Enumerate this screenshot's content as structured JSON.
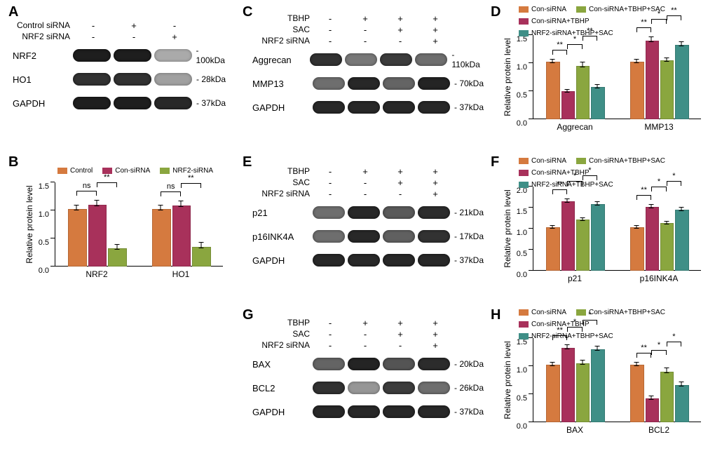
{
  "colors": {
    "orange": "#d57a3f",
    "magenta": "#a8315b",
    "olive": "#8aa63f",
    "teal": "#3f8f87",
    "grid": "#000000",
    "bg": "#ffffff"
  },
  "labels": {
    "A": "A",
    "B": "B",
    "C": "C",
    "D": "D",
    "E": "E",
    "F": "F",
    "G": "G",
    "H": "H"
  },
  "panelA": {
    "headers": [
      "Control siRNA",
      "NRF2 siRNA"
    ],
    "matrix": [
      [
        "-",
        "+",
        "-"
      ],
      [
        "-",
        "-",
        "+"
      ]
    ],
    "rows": [
      {
        "name": "NRF2",
        "mw": "100kDa",
        "intens": [
          0.95,
          0.95,
          0.25
        ]
      },
      {
        "name": "HO1",
        "mw": "28kDa",
        "intens": [
          0.85,
          0.85,
          0.3
        ]
      },
      {
        "name": "GAPDH",
        "mw": "37kDa",
        "intens": [
          0.95,
          0.95,
          0.9
        ]
      }
    ]
  },
  "panelB": {
    "ylabel": "Relative protein level",
    "ymax": 1.5,
    "ytick": 0.5,
    "series_colors": [
      "orange",
      "magenta",
      "olive"
    ],
    "legend": [
      "Control",
      "Con-siRNA",
      "NRF2-siRNA"
    ],
    "groups": [
      {
        "name": "NRF2",
        "vals": [
          1.0,
          1.07,
          0.3
        ],
        "errs": [
          0.1,
          0.12,
          0.1
        ],
        "sig": [
          [
            "ns",
            0,
            1
          ],
          [
            "**",
            1,
            2
          ]
        ]
      },
      {
        "name": "HO1",
        "vals": [
          1.0,
          1.06,
          0.33
        ],
        "errs": [
          0.1,
          0.11,
          0.11
        ],
        "sig": [
          [
            "ns",
            0,
            1
          ],
          [
            "**",
            1,
            2
          ]
        ]
      }
    ]
  },
  "panelC": {
    "headers": [
      "TBHP",
      "SAC",
      "NRF2 siRNA"
    ],
    "matrix": [
      [
        "-",
        "+",
        "+",
        "+"
      ],
      [
        "-",
        "-",
        "+",
        "+"
      ],
      [
        "-",
        "-",
        "-",
        "+"
      ]
    ],
    "rows": [
      {
        "name": "Aggrecan",
        "mw": "110kDa",
        "intens": [
          0.85,
          0.5,
          0.8,
          0.55
        ]
      },
      {
        "name": "MMP13",
        "mw": "70kDa",
        "intens": [
          0.55,
          0.9,
          0.6,
          0.92
        ]
      },
      {
        "name": "GAPDH",
        "mw": "37kDa",
        "intens": [
          0.9,
          0.9,
          0.9,
          0.9
        ]
      }
    ]
  },
  "panelE": {
    "headers": [
      "TBHP",
      "SAC",
      "NRF2 siRNA"
    ],
    "matrix": [
      [
        "-",
        "+",
        "+",
        "+"
      ],
      [
        "-",
        "-",
        "+",
        "+"
      ],
      [
        "-",
        "-",
        "-",
        "+"
      ]
    ],
    "rows": [
      {
        "name": "p21",
        "mw": "21kDa",
        "intens": [
          0.55,
          0.9,
          0.65,
          0.88
        ]
      },
      {
        "name": "p16INK4A",
        "mw": "17kDa",
        "intens": [
          0.55,
          0.9,
          0.62,
          0.85
        ]
      },
      {
        "name": "GAPDH",
        "mw": "37kDa",
        "intens": [
          0.9,
          0.9,
          0.9,
          0.9
        ]
      }
    ]
  },
  "panelG": {
    "headers": [
      "TBHP",
      "SAC",
      "NRF2 siRNA"
    ],
    "matrix": [
      [
        "-",
        "+",
        "+",
        "+"
      ],
      [
        "-",
        "-",
        "+",
        "+"
      ],
      [
        "-",
        "-",
        "-",
        "+"
      ]
    ],
    "rows": [
      {
        "name": "BAX",
        "mw": "20kDa",
        "intens": [
          0.6,
          0.92,
          0.68,
          0.88
        ]
      },
      {
        "name": "BCL2",
        "mw": "26kDa",
        "intens": [
          0.85,
          0.35,
          0.8,
          0.55
        ]
      },
      {
        "name": "GAPDH",
        "mw": "37kDa",
        "intens": [
          0.9,
          0.9,
          0.9,
          0.9
        ]
      }
    ]
  },
  "quadLegend": [
    "Con-siRNA",
    "Con-siRNA+TBHP+SAC",
    "Con-siRNA+TBHP",
    "NRF2-siRNA+TBHP+SAC"
  ],
  "quadColors": [
    "orange",
    "olive",
    "magenta",
    "teal"
  ],
  "panelD": {
    "ylabel": "Relative protein level",
    "ymax": 1.5,
    "ytick": 0.5,
    "groups": [
      {
        "name": "Aggrecan",
        "vals": [
          1.0,
          0.47,
          0.92,
          0.55
        ],
        "errs": [
          0.08,
          0.07,
          0.1,
          0.08
        ],
        "sig": [
          [
            "**",
            0,
            1
          ],
          [
            "*",
            1,
            2
          ],
          [
            "**",
            2,
            3
          ]
        ]
      },
      {
        "name": "MMP13",
        "vals": [
          1.0,
          1.38,
          1.02,
          1.3
        ],
        "errs": [
          0.08,
          0.1,
          0.08,
          0.09
        ],
        "sig": [
          [
            "**",
            0,
            1
          ],
          [
            "*",
            1,
            2
          ],
          [
            "**",
            2,
            3
          ]
        ]
      }
    ]
  },
  "panelF": {
    "ylabel": "Relative protein level",
    "ymax": 2.0,
    "ytick": 0.5,
    "groups": [
      {
        "name": "p21",
        "vals": [
          1.0,
          1.62,
          1.18,
          1.55
        ],
        "errs": [
          0.09,
          0.1,
          0.09,
          0.1
        ],
        "sig": [
          [
            "**",
            0,
            1
          ],
          [
            "*",
            1,
            2
          ],
          [
            "*",
            2,
            3
          ]
        ]
      },
      {
        "name": "p16INK4A",
        "vals": [
          1.0,
          1.48,
          1.1,
          1.42
        ],
        "errs": [
          0.08,
          0.1,
          0.08,
          0.1
        ],
        "sig": [
          [
            "**",
            0,
            1
          ],
          [
            "*",
            1,
            2
          ],
          [
            "*",
            2,
            3
          ]
        ]
      }
    ]
  },
  "panelH": {
    "ylabel": "Relative protein level",
    "ymax": 1.5,
    "ytick": 0.5,
    "groups": [
      {
        "name": "BAX",
        "vals": [
          1.0,
          1.3,
          1.03,
          1.27
        ],
        "errs": [
          0.07,
          0.09,
          0.08,
          0.09
        ],
        "sig": [
          [
            "**",
            0,
            1
          ],
          [
            "*",
            1,
            2
          ],
          [
            "*",
            2,
            3
          ]
        ]
      },
      {
        "name": "BCL2",
        "vals": [
          1.0,
          0.4,
          0.88,
          0.64
        ],
        "errs": [
          0.08,
          0.07,
          0.09,
          0.08
        ],
        "sig": [
          [
            "**",
            0,
            1
          ],
          [
            "*",
            1,
            2
          ],
          [
            "*",
            2,
            3
          ]
        ]
      }
    ]
  }
}
